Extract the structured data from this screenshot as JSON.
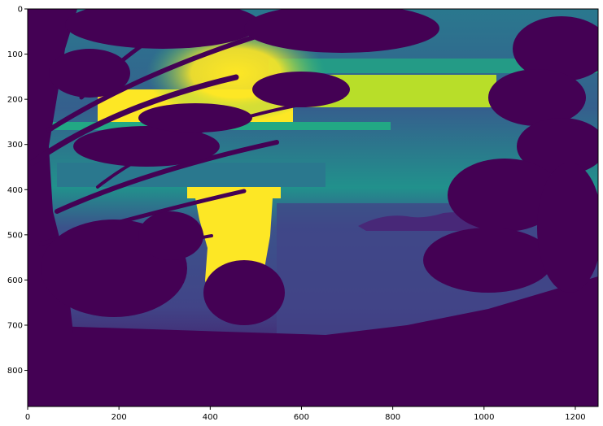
{
  "chart_data": {
    "type": "heatmap",
    "title": "",
    "xlabel": "",
    "ylabel": "",
    "colormap": "viridis",
    "image_width": 1250,
    "image_height": 880,
    "xlim": [
      0,
      1250
    ],
    "ylim": [
      880,
      0
    ],
    "x_ticks": [
      0,
      200,
      400,
      600,
      800,
      1000,
      1200
    ],
    "y_ticks": [
      0,
      100,
      200,
      300,
      400,
      500,
      600,
      700,
      800
    ],
    "x_tick_labels": [
      "0",
      "200",
      "400",
      "600",
      "800",
      "1000",
      "1200"
    ],
    "y_tick_labels": [
      "0",
      "100",
      "200",
      "300",
      "400",
      "500",
      "600",
      "700",
      "800"
    ],
    "grid": false,
    "legend": "none",
    "content": "Silhouetted pine branches framing a sunset over the sea, with a bright sun reflection column and a distant island, rendered in the viridis colormap."
  },
  "colors": {
    "viridis_dark": "#440154",
    "viridis_dark2": "#3b0f6f",
    "viridis_mid_purple": "#414487",
    "viridis_blue": "#355f8d",
    "viridis_teal": "#2a788e",
    "viridis_teal2": "#21918c",
    "viridis_green": "#22a884",
    "viridis_light_green": "#44bf70",
    "viridis_yellow": "#fde725",
    "axis_color": "#000000"
  }
}
